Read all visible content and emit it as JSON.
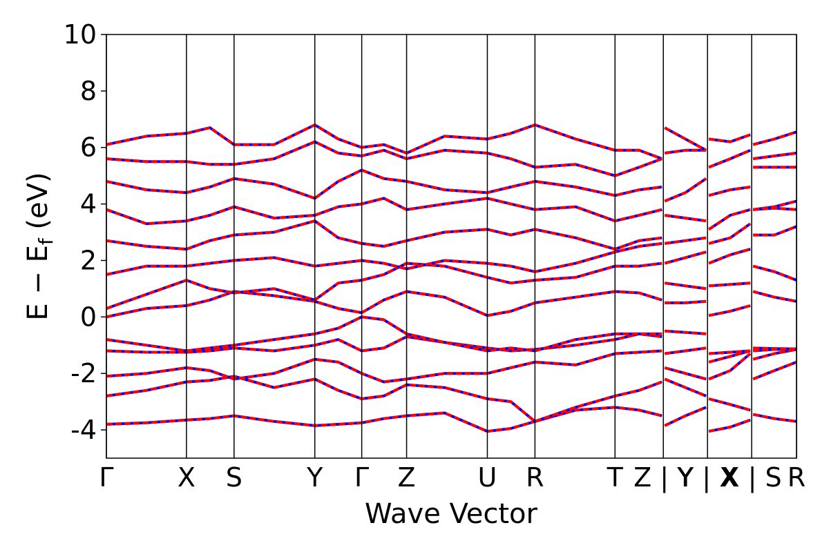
{
  "chart_data": {
    "type": "band",
    "xlabel": "Wave Vector",
    "ylabel_parts": [
      "E − E",
      "f",
      " (eV)"
    ],
    "xlim": [
      0,
      1
    ],
    "ylim": [
      -5,
      10
    ],
    "yticks": [
      -4,
      -2,
      0,
      2,
      4,
      6,
      8,
      10
    ],
    "xticks": [
      {
        "value": 0,
        "label": "Γ"
      },
      {
        "value": 0.116,
        "label": "X"
      },
      {
        "value": 0.185,
        "label": "S"
      },
      {
        "value": 0.302,
        "label": "Y"
      },
      {
        "value": 0.37,
        "label": "Γ"
      },
      {
        "value": 0.435,
        "label": "Z"
      },
      {
        "value": 0.552,
        "label": "U"
      },
      {
        "value": 0.621,
        "label": "R"
      },
      {
        "value": 0.737,
        "label": "T"
      },
      {
        "value": 0.807,
        "label": "Z | Y"
      },
      {
        "value": 0.871,
        "label": "Y | X"
      },
      {
        "value": 0.935,
        "label": "X | S"
      },
      {
        "value": 1,
        "label": "R"
      }
    ],
    "color": "#ff0000",
    "underlay_color": "#0000ff",
    "x": [
      0,
      0.058,
      0.116,
      0.15,
      0.185,
      0.243,
      0.302,
      0.336,
      0.37,
      0.402,
      0.435,
      0.49,
      0.552,
      0.586,
      0.621,
      0.68,
      0.737,
      0.772,
      0.805,
      0.807,
      0.809,
      0.839,
      0.869,
      0.871,
      0.873,
      0.904,
      0.933,
      0.935,
      0.937,
      0.968,
      1.0
    ],
    "series": [
      {
        "values": [
          -3.8,
          -3.75,
          -3.65,
          -3.6,
          -3.5,
          -3.7,
          -3.85,
          -3.8,
          -3.75,
          -3.6,
          -3.5,
          -3.4,
          -4.05,
          -3.95,
          -3.7,
          -3.3,
          -3.2,
          -3.3,
          -3.5,
          null,
          -3.85,
          -3.5,
          -3.2,
          null,
          -4.05,
          -3.9,
          -3.65,
          null,
          -3.45,
          -3.6,
          -3.7
        ]
      },
      {
        "values": [
          -2.8,
          -2.6,
          -2.3,
          -2.25,
          -2.1,
          -2.5,
          -2.2,
          -2.6,
          -2.9,
          -2.8,
          -2.4,
          -2.5,
          -2.9,
          -3.0,
          -3.7,
          -3.2,
          -2.8,
          -2.6,
          -2.3,
          null,
          -2.2,
          -2.5,
          -2.8,
          null,
          -2.9,
          -3.1,
          -3.3,
          null,
          -2.2,
          -1.9,
          -1.6
        ]
      },
      {
        "values": [
          -2.1,
          -2.0,
          -1.8,
          -1.9,
          -2.2,
          -2.0,
          -1.5,
          -1.6,
          -2.0,
          -2.3,
          -2.2,
          -2.0,
          -2.0,
          -1.8,
          -1.6,
          -1.7,
          -1.3,
          -1.25,
          -1.2,
          null,
          -1.8,
          -2.0,
          -2.2,
          null,
          -2.2,
          -1.9,
          -1.3,
          null,
          -1.2,
          -1.15,
          -1.15
        ]
      },
      {
        "values": [
          -1.2,
          -1.25,
          -1.25,
          -1.2,
          -1.1,
          -1.2,
          -1.0,
          -0.8,
          -1.2,
          -1.1,
          -0.7,
          -0.9,
          -1.1,
          -1.2,
          -1.15,
          -1.0,
          -0.8,
          -0.6,
          -0.7,
          null,
          -1.3,
          -1.2,
          -1.1,
          null,
          -1.6,
          -1.4,
          -1.2,
          null,
          -1.5,
          -1.3,
          -1.15
        ]
      },
      {
        "values": [
          -0.8,
          -1.0,
          -1.2,
          -1.1,
          -1.0,
          -0.8,
          -0.6,
          -0.4,
          0.0,
          -0.1,
          -0.6,
          -0.9,
          -1.2,
          -1.1,
          -1.2,
          -0.8,
          -0.6,
          -0.6,
          -0.6,
          null,
          -0.5,
          -0.55,
          -0.6,
          null,
          -1.3,
          -1.25,
          -1.2,
          null,
          -1.1,
          -1.12,
          -1.13
        ]
      },
      {
        "values": [
          0.0,
          0.3,
          0.4,
          0.6,
          0.9,
          0.75,
          0.55,
          0.3,
          0.15,
          0.6,
          0.9,
          0.7,
          0.05,
          0.2,
          0.5,
          0.7,
          0.9,
          0.85,
          0.6,
          null,
          0.5,
          0.5,
          0.55,
          null,
          0.05,
          0.2,
          0.4,
          null,
          0.9,
          0.7,
          0.55
        ]
      },
      {
        "values": [
          0.3,
          0.8,
          1.3,
          1.0,
          0.85,
          1.0,
          0.6,
          1.2,
          1.3,
          1.5,
          1.9,
          1.8,
          1.4,
          1.2,
          1.3,
          1.4,
          1.8,
          1.8,
          1.9,
          null,
          1.2,
          1.1,
          1.0,
          null,
          1.1,
          1.15,
          1.2,
          null,
          1.8,
          1.6,
          1.3
        ]
      },
      {
        "values": [
          1.5,
          1.8,
          1.8,
          1.9,
          2.0,
          2.1,
          1.8,
          1.9,
          2.0,
          1.9,
          1.7,
          2.0,
          1.9,
          1.8,
          1.6,
          1.9,
          2.3,
          2.5,
          2.6,
          null,
          1.9,
          2.1,
          2.3,
          null,
          1.9,
          2.2,
          2.4,
          null,
          2.9,
          2.9,
          3.2
        ]
      },
      {
        "values": [
          2.7,
          2.5,
          2.4,
          2.7,
          2.9,
          3.0,
          3.4,
          2.8,
          2.6,
          2.5,
          2.7,
          3.0,
          3.1,
          2.9,
          3.1,
          2.8,
          2.4,
          2.7,
          2.8,
          null,
          2.6,
          2.7,
          2.8,
          null,
          2.6,
          2.8,
          3.3,
          null,
          3.8,
          3.9,
          4.1
        ]
      },
      {
        "values": [
          3.8,
          3.3,
          3.4,
          3.6,
          3.9,
          3.5,
          3.6,
          3.9,
          4.0,
          4.2,
          3.8,
          4.0,
          4.2,
          4.0,
          3.8,
          3.9,
          3.4,
          3.6,
          3.8,
          null,
          3.6,
          3.5,
          3.4,
          null,
          3.1,
          3.6,
          3.8,
          null,
          3.8,
          3.85,
          3.8
        ]
      },
      {
        "values": [
          4.8,
          4.5,
          4.4,
          4.6,
          4.9,
          4.7,
          4.2,
          4.8,
          5.2,
          4.9,
          4.8,
          4.5,
          4.4,
          4.6,
          4.8,
          4.6,
          4.3,
          4.5,
          4.6,
          null,
          4.1,
          4.4,
          4.9,
          null,
          4.3,
          4.5,
          4.6,
          null,
          5.3,
          5.3,
          5.3
        ]
      },
      {
        "values": [
          5.6,
          5.5,
          5.5,
          5.4,
          5.4,
          5.6,
          6.2,
          5.8,
          5.7,
          5.9,
          5.6,
          5.9,
          5.8,
          5.6,
          5.3,
          5.4,
          5.0,
          5.3,
          5.6,
          null,
          5.8,
          5.9,
          5.9,
          null,
          5.3,
          5.6,
          5.9,
          null,
          5.6,
          5.7,
          5.8
        ]
      },
      {
        "values": [
          6.1,
          6.4,
          6.5,
          6.7,
          6.1,
          6.1,
          6.8,
          6.3,
          6.0,
          6.1,
          5.8,
          6.4,
          6.3,
          6.5,
          6.8,
          6.3,
          5.9,
          5.9,
          5.6,
          null,
          6.7,
          6.3,
          5.9,
          null,
          6.3,
          6.2,
          6.45,
          null,
          6.1,
          6.3,
          6.55
        ]
      }
    ]
  }
}
